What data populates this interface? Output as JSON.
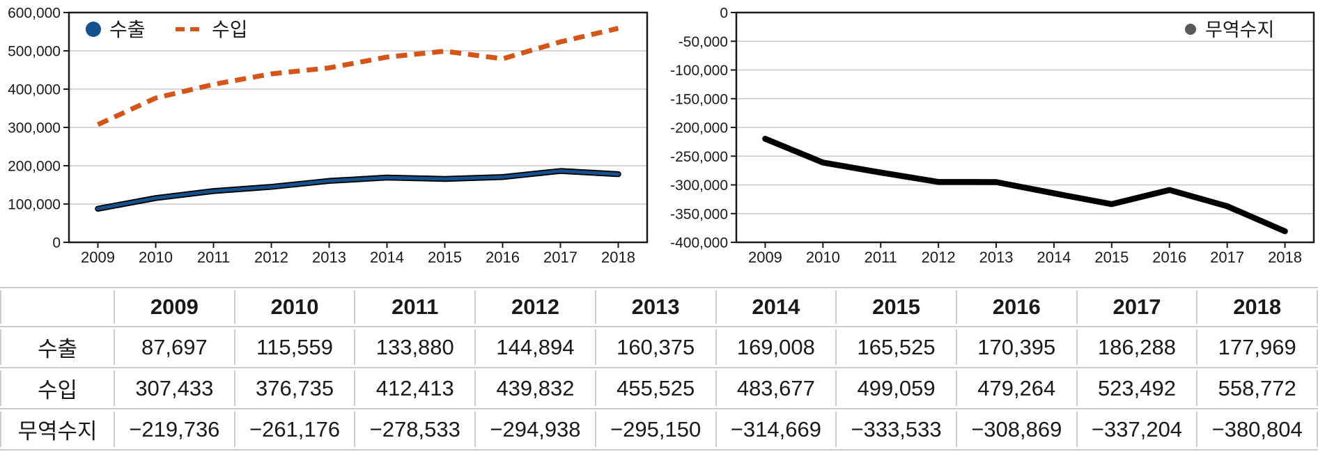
{
  "chart_data": [
    {
      "id": "export-import-chart",
      "type": "line",
      "title": "",
      "xlabel": "",
      "ylabel": "",
      "categories": [
        "2009",
        "2010",
        "2011",
        "2012",
        "2013",
        "2014",
        "2015",
        "2016",
        "2017",
        "2018"
      ],
      "series": [
        {
          "name": "수출",
          "values": [
            87697,
            115559,
            133880,
            144894,
            160375,
            169008,
            165525,
            170395,
            186288,
            177969
          ],
          "color": "#15518C",
          "outline_color": "#000000",
          "line_style": "solid-outlined",
          "legend_marker": "dot"
        },
        {
          "name": "수입",
          "values": [
            307433,
            376735,
            412413,
            439832,
            455525,
            483677,
            499059,
            479264,
            523492,
            558772
          ],
          "color": "#D4551A",
          "line_style": "dashed",
          "legend_marker": "dash"
        }
      ],
      "ylim": [
        0,
        600000
      ],
      "ytick_step": 100000,
      "grid": true,
      "legend_position": "top-left"
    },
    {
      "id": "trade-balance-chart",
      "type": "line",
      "title": "",
      "xlabel": "",
      "ylabel": "",
      "categories": [
        "2009",
        "2010",
        "2011",
        "2012",
        "2013",
        "2014",
        "2015",
        "2016",
        "2017",
        "2018"
      ],
      "series": [
        {
          "name": "무역수지",
          "values": [
            -219736,
            -261176,
            -278533,
            -294938,
            -295150,
            -314669,
            -333533,
            -308869,
            -337204,
            -380804
          ],
          "color": "#000000",
          "marker_color": "#595959",
          "line_style": "solid",
          "legend_marker": "dot"
        }
      ],
      "ylim": [
        -400000,
        0
      ],
      "ytick_step": 50000,
      "grid": true,
      "legend_position": "top-right"
    }
  ],
  "table": {
    "columns": [
      "",
      "2009",
      "2010",
      "2011",
      "2012",
      "2013",
      "2014",
      "2015",
      "2016",
      "2017",
      "2018"
    ],
    "rows": [
      {
        "label": "수출",
        "values": [
          "87,697",
          "115,559",
          "133,880",
          "144,894",
          "160,375",
          "169,008",
          "165,525",
          "170,395",
          "186,288",
          "177,969"
        ]
      },
      {
        "label": "수입",
        "values": [
          "307,433",
          "376,735",
          "412,413",
          "439,832",
          "455,525",
          "483,677",
          "499,059",
          "479,264",
          "523,492",
          "558,772"
        ]
      },
      {
        "label": "무역수지",
        "values": [
          "−219,736",
          "−261,176",
          "−278,533",
          "−294,938",
          "−295,150",
          "−314,669",
          "−333,533",
          "−308,869",
          "−337,204",
          "−380,804"
        ]
      }
    ]
  },
  "colors": {
    "axis": "#1a1a1a",
    "grid": "#c8c8c8",
    "table_border": "#cccccc",
    "export_line": "#15518C",
    "import_line": "#D4551A",
    "balance_line": "#000000",
    "balance_marker": "#595959"
  }
}
